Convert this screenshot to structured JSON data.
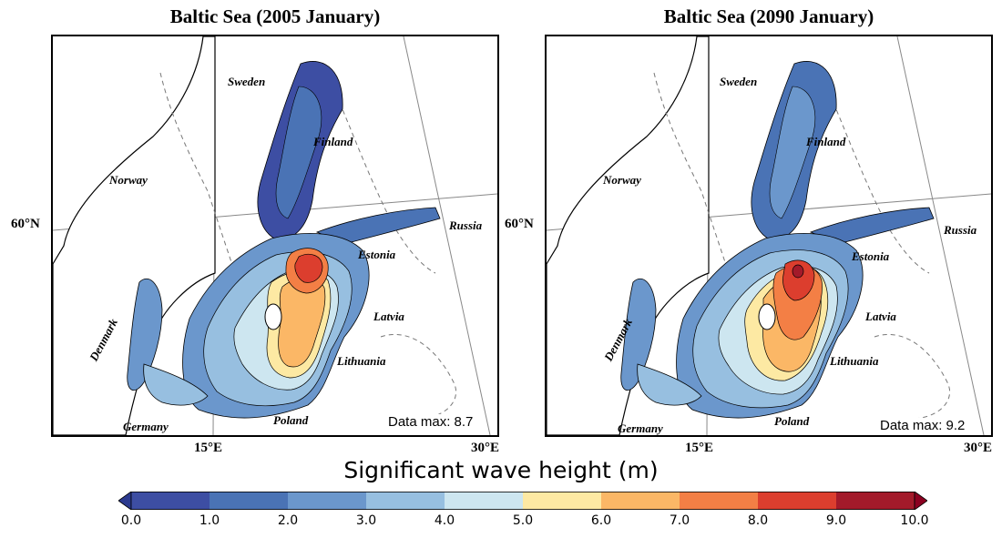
{
  "panels": [
    {
      "title": "Baltic Sea (2005 January)",
      "data_max": "Data max: 8.7",
      "peak_wave_height_m": 8.7,
      "countries": [
        "Sweden",
        "Finland",
        "Norway",
        "Russia",
        "Estonia",
        "Latvia",
        "Denmark",
        "Lithuania",
        "Germany",
        "Poland"
      ],
      "latitude_label": "60°N",
      "longitude_labels": [
        "15°E",
        "30°E"
      ]
    },
    {
      "title": "Baltic Sea (2090 January)",
      "data_max": "Data max: 9.2",
      "peak_wave_height_m": 9.2,
      "countries": [
        "Sweden",
        "Finland",
        "Norway",
        "Russia",
        "Estonia",
        "Latvia",
        "Denmark",
        "Lithuania",
        "Germany",
        "Poland"
      ],
      "latitude_label": "60°N",
      "longitude_labels": [
        "15°E",
        "30°E"
      ]
    }
  ],
  "colorbar": {
    "title": "Significant wave height (m)",
    "ticks": [
      "0.0",
      "1.0",
      "2.0",
      "3.0",
      "4.0",
      "5.0",
      "6.0",
      "7.0",
      "8.0",
      "9.0",
      "10.0"
    ],
    "colors": [
      "#3d4ea3",
      "#4a73b5",
      "#6b97cc",
      "#97bfe0",
      "#cde6f0",
      "#fde9a3",
      "#fbb766",
      "#f37f45",
      "#dc3e2e",
      "#a31a2a"
    ],
    "extend_low_color": "#2c3a8f",
    "extend_high_color": "#8b0020"
  }
}
